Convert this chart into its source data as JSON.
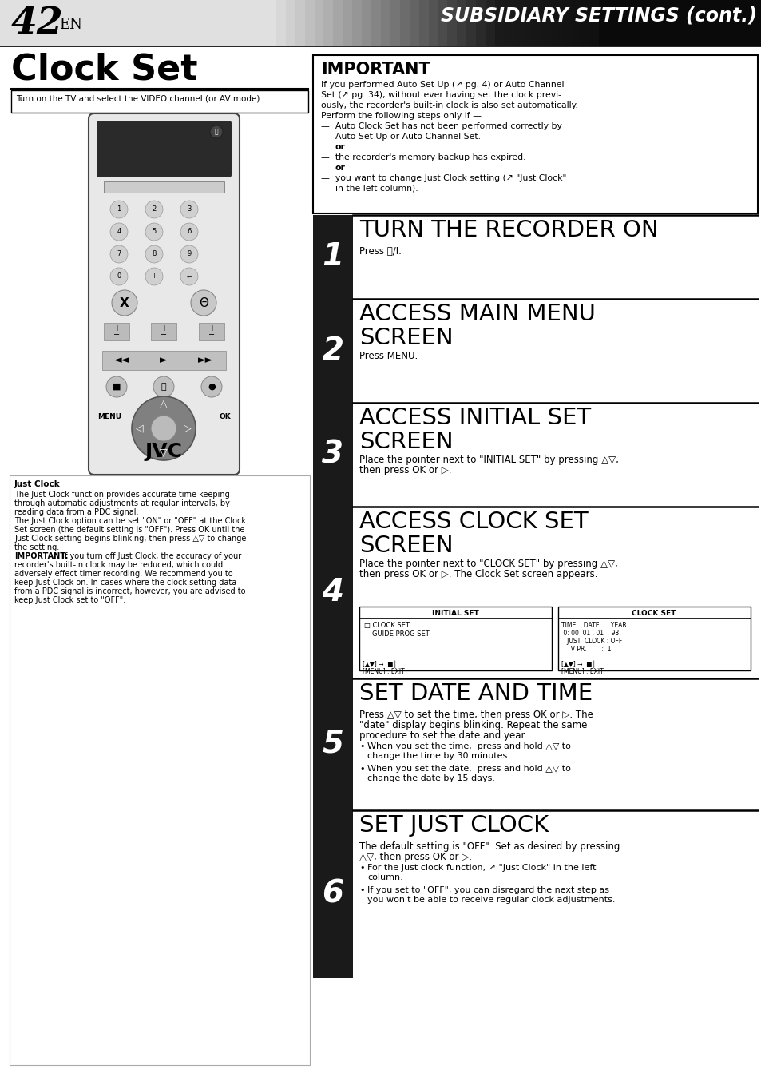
{
  "page_num": "42",
  "page_suffix": "EN",
  "header_title": "SUBSIDIARY SETTINGS (cont.)",
  "section_title": "Clock Set",
  "instruction_box": "Turn on the TV and select the VIDEO channel (or AV mode).",
  "important_title": "IMPORTANT",
  "important_lines": [
    "If you performed Auto Set Up (↗ pg. 4) or Auto Channel",
    "Set (↗ pg. 34), without ever having set the clock previ-",
    "ously, the recorder's built-in clock is also set automatically.",
    "Perform the following steps only if —",
    "—  Auto Clock Set has not been performed correctly by",
    "    Auto Set Up or Auto Channel Set.",
    "          or",
    "—  the recorder's memory backup has expired.",
    "          or",
    "—  you want to change Just Clock setting (↗ \"Just Clock\"",
    "    in the left column)."
  ],
  "steps": [
    {
      "num": "1",
      "title": "TURN THE RECORDER ON",
      "title_lines": 1,
      "body_lines": [
        "Press ⏻/I."
      ],
      "has_screens": false
    },
    {
      "num": "2",
      "title": "ACCESS MAIN MENU\nSCREEN",
      "title_lines": 2,
      "body_lines": [
        "Press MENU."
      ],
      "has_screens": false
    },
    {
      "num": "3",
      "title": "ACCESS INITIAL SET\nSCREEN",
      "title_lines": 2,
      "body_lines": [
        "Place the pointer next to \"INITIAL SET\" by pressing △▽,",
        "then press OK or ▷."
      ],
      "has_screens": false
    },
    {
      "num": "4",
      "title": "ACCESS CLOCK SET\nSCREEN",
      "title_lines": 2,
      "body_lines": [
        "Place the pointer next to \"CLOCK SET\" by pressing △▽,",
        "then press OK or ▷. The Clock Set screen appears."
      ],
      "has_screens": true
    },
    {
      "num": "5",
      "title": "SET DATE AND TIME",
      "title_lines": 1,
      "body_lines": [
        "Press △▽ to set the time, then press OK or ▷. The",
        "\"date\" display begins blinking. Repeat the same",
        "procedure to set the date and year."
      ],
      "has_screens": false,
      "bullets": [
        [
          "When you set the time,  press and hold △▽ to",
          "change the time by 30 minutes."
        ],
        [
          "When you set the date,  press and hold △▽ to",
          "change the date by 15 days."
        ]
      ]
    },
    {
      "num": "6",
      "title": "SET JUST CLOCK",
      "title_lines": 1,
      "body_lines": [
        "The default setting is \"OFF\". Set as desired by pressing",
        "△▽, then press OK or ▷."
      ],
      "has_screens": false,
      "bullets": [
        [
          "For the Just clock function, ↗ \"Just Clock\" in the left",
          "column."
        ],
        [
          "If you set to \"OFF\", you can disregard the next step as",
          "you won't be able to receive regular clock adjustments."
        ]
      ]
    }
  ],
  "just_clock_title": "Just Clock",
  "just_clock_lines": [
    "The Just Clock function provides accurate time keeping",
    "through automatic adjustments at regular intervals, by",
    "reading data from a PDC signal.",
    "The Just Clock option can be set \"ON\" or \"OFF\" at the Clock",
    "Set screen (the default setting is \"OFF\"). Press OK until the",
    "Just Clock setting begins blinking, then press △▽ to change",
    "the setting.",
    "IMPORTANT: If you turn off Just Clock, the accuracy of your",
    "recorder's built-in clock may be reduced, which could",
    "adversely effect timer recording. We recommend you to",
    "keep Just Clock on. In cases where the clock setting data",
    "from a PDC signal is incorrect, however, you are advised to",
    "keep Just Clock set to \"OFF\"."
  ],
  "bg_color": "#ffffff",
  "step_num_bg": "#1a1a1a",
  "step_heights": [
    105,
    130,
    130,
    215,
    165,
    210
  ]
}
